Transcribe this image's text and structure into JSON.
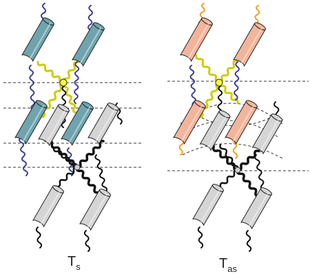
{
  "labels": {
    "left": {
      "main": "T",
      "sub": "s"
    },
    "right": {
      "main": "T",
      "sub": "as"
    }
  },
  "colors": {
    "cylinder_blue": "#6fa4ae",
    "cylinder_pink": "#f2b59b",
    "cylinder_gray": "#d5d5d5",
    "chain_yellow": "#cccc00",
    "chain_blue": "#3d3d9b",
    "chain_orange": "#f0a020",
    "chain_black": "#111111",
    "dashed_line": "#333333",
    "junction_yellow": "#ffff33",
    "junction_gray": "#cfcfcf"
  }
}
